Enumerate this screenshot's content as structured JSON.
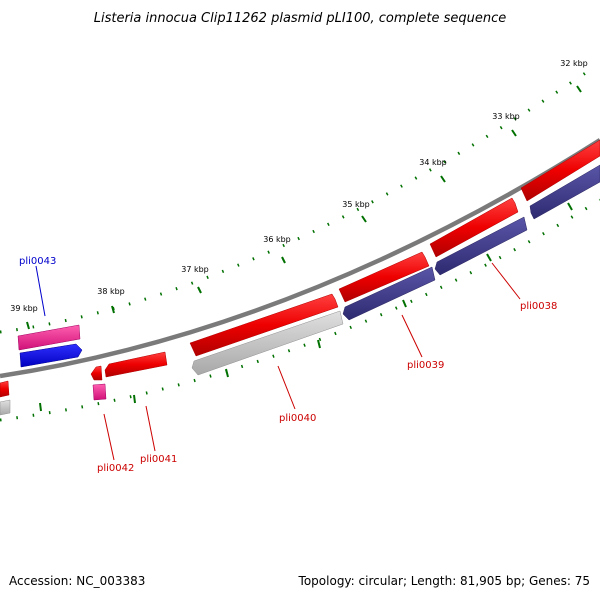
{
  "title": "Listeria innocua Clip11262 plasmid pLI100, complete sequence",
  "footer": {
    "accession": "Accession: NC_003383",
    "topology": "Topology: circular; Length: 81,905 bp; Genes: 75"
  },
  "kbp_labels": [
    "32 kbp",
    "33 kbp",
    "34 kbp",
    "35 kbp",
    "36 kbp",
    "37 kbp",
    "38 kbp",
    "39 kbp"
  ],
  "gene_labels": [
    {
      "name": "pli0043",
      "color": "#0000cc"
    },
    {
      "name": "pli0042",
      "color": "#cc0000"
    },
    {
      "name": "pli0041",
      "color": "#cc0000"
    },
    {
      "name": "pli0040",
      "color": "#cc0000"
    },
    {
      "name": "pli0039",
      "color": "#cc0000"
    },
    {
      "name": "pli0038",
      "color": "#cc0000"
    }
  ],
  "colors": {
    "backbone": "#808080",
    "cds_forward": "#ff0000",
    "cds_reverse": "#403c8c",
    "cds_gray": "#c0c0c0",
    "pink": "#f0208c",
    "blue": "#0000ff",
    "ticks": "#007000"
  }
}
